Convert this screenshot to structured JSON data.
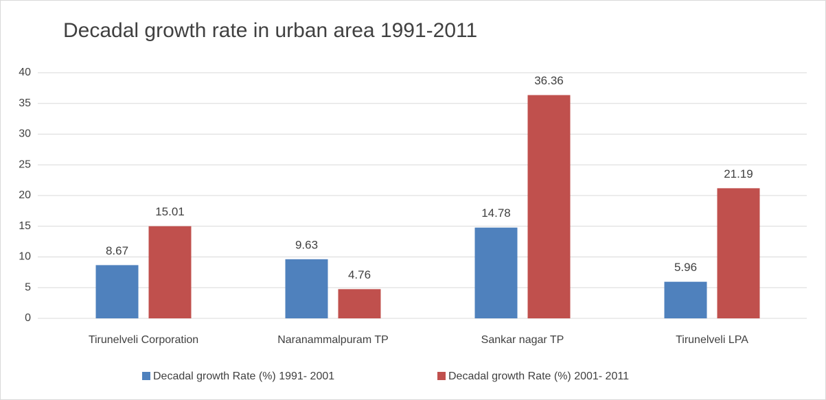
{
  "chart_data": {
    "type": "bar",
    "title": "Decadal growth rate in urban area 1991-2011",
    "categories": [
      "Tirunelveli Corporation",
      "Naranammalpuram TP",
      "Sankar nagar TP",
      "Tirunelveli LPA"
    ],
    "series": [
      {
        "name": "Decadal growth Rate (%) 1991- 2001",
        "color": "#4f81bd",
        "values": [
          8.67,
          9.63,
          14.78,
          5.96
        ]
      },
      {
        "name": "Decadal growth Rate (%) 2001- 2011",
        "color": "#c0504d",
        "values": [
          15.01,
          4.76,
          36.36,
          21.19
        ]
      }
    ],
    "ylim": [
      0,
      40
    ],
    "yticks": [
      0,
      5,
      10,
      15,
      20,
      25,
      30,
      35,
      40
    ],
    "grid": true,
    "legend": "bottom"
  }
}
